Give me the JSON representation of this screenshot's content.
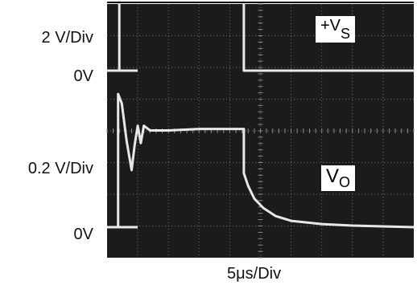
{
  "chart_data": {
    "type": "line",
    "title": "",
    "xlabel": "5μs/Div",
    "x_unit": "μs",
    "x_per_div": 5,
    "xlim": [
      0,
      50
    ],
    "grid": true,
    "y_tick_labels": [
      "2 V/Div",
      "0V",
      "0.2 V/Div",
      "0V"
    ],
    "series": [
      {
        "name": "+VS",
        "label_prefix": "+V",
        "label_sub": "S",
        "volts_per_div": 2,
        "x": [
          0,
          2.0,
          2.0,
          22.3,
          22.3,
          50
        ],
        "y": [
          0,
          0,
          8.5,
          8.5,
          0,
          0
        ]
      },
      {
        "name": "VO",
        "label_prefix": "V",
        "label_sub": "O",
        "volts_per_div": 0.2,
        "x": [
          0,
          1.8,
          1.8,
          2.4,
          3.2,
          4.0,
          4.5,
          5.0,
          5.5,
          6.0,
          7.0,
          10,
          15,
          22.3,
          22.3,
          23.0,
          24.0,
          25.5,
          27.5,
          30,
          35,
          40,
          50
        ],
        "y": [
          0,
          0,
          0.84,
          0.78,
          0.54,
          0.36,
          0.52,
          0.64,
          0.53,
          0.64,
          0.61,
          0.61,
          0.62,
          0.62,
          0.34,
          0.26,
          0.18,
          0.12,
          0.07,
          0.04,
          0.02,
          0.01,
          0.0
        ]
      }
    ]
  },
  "colors": {
    "screen": "#1b1b1b",
    "grid": "#8a8a8a",
    "trace": "#e8e8e6",
    "frame": "#000000"
  }
}
